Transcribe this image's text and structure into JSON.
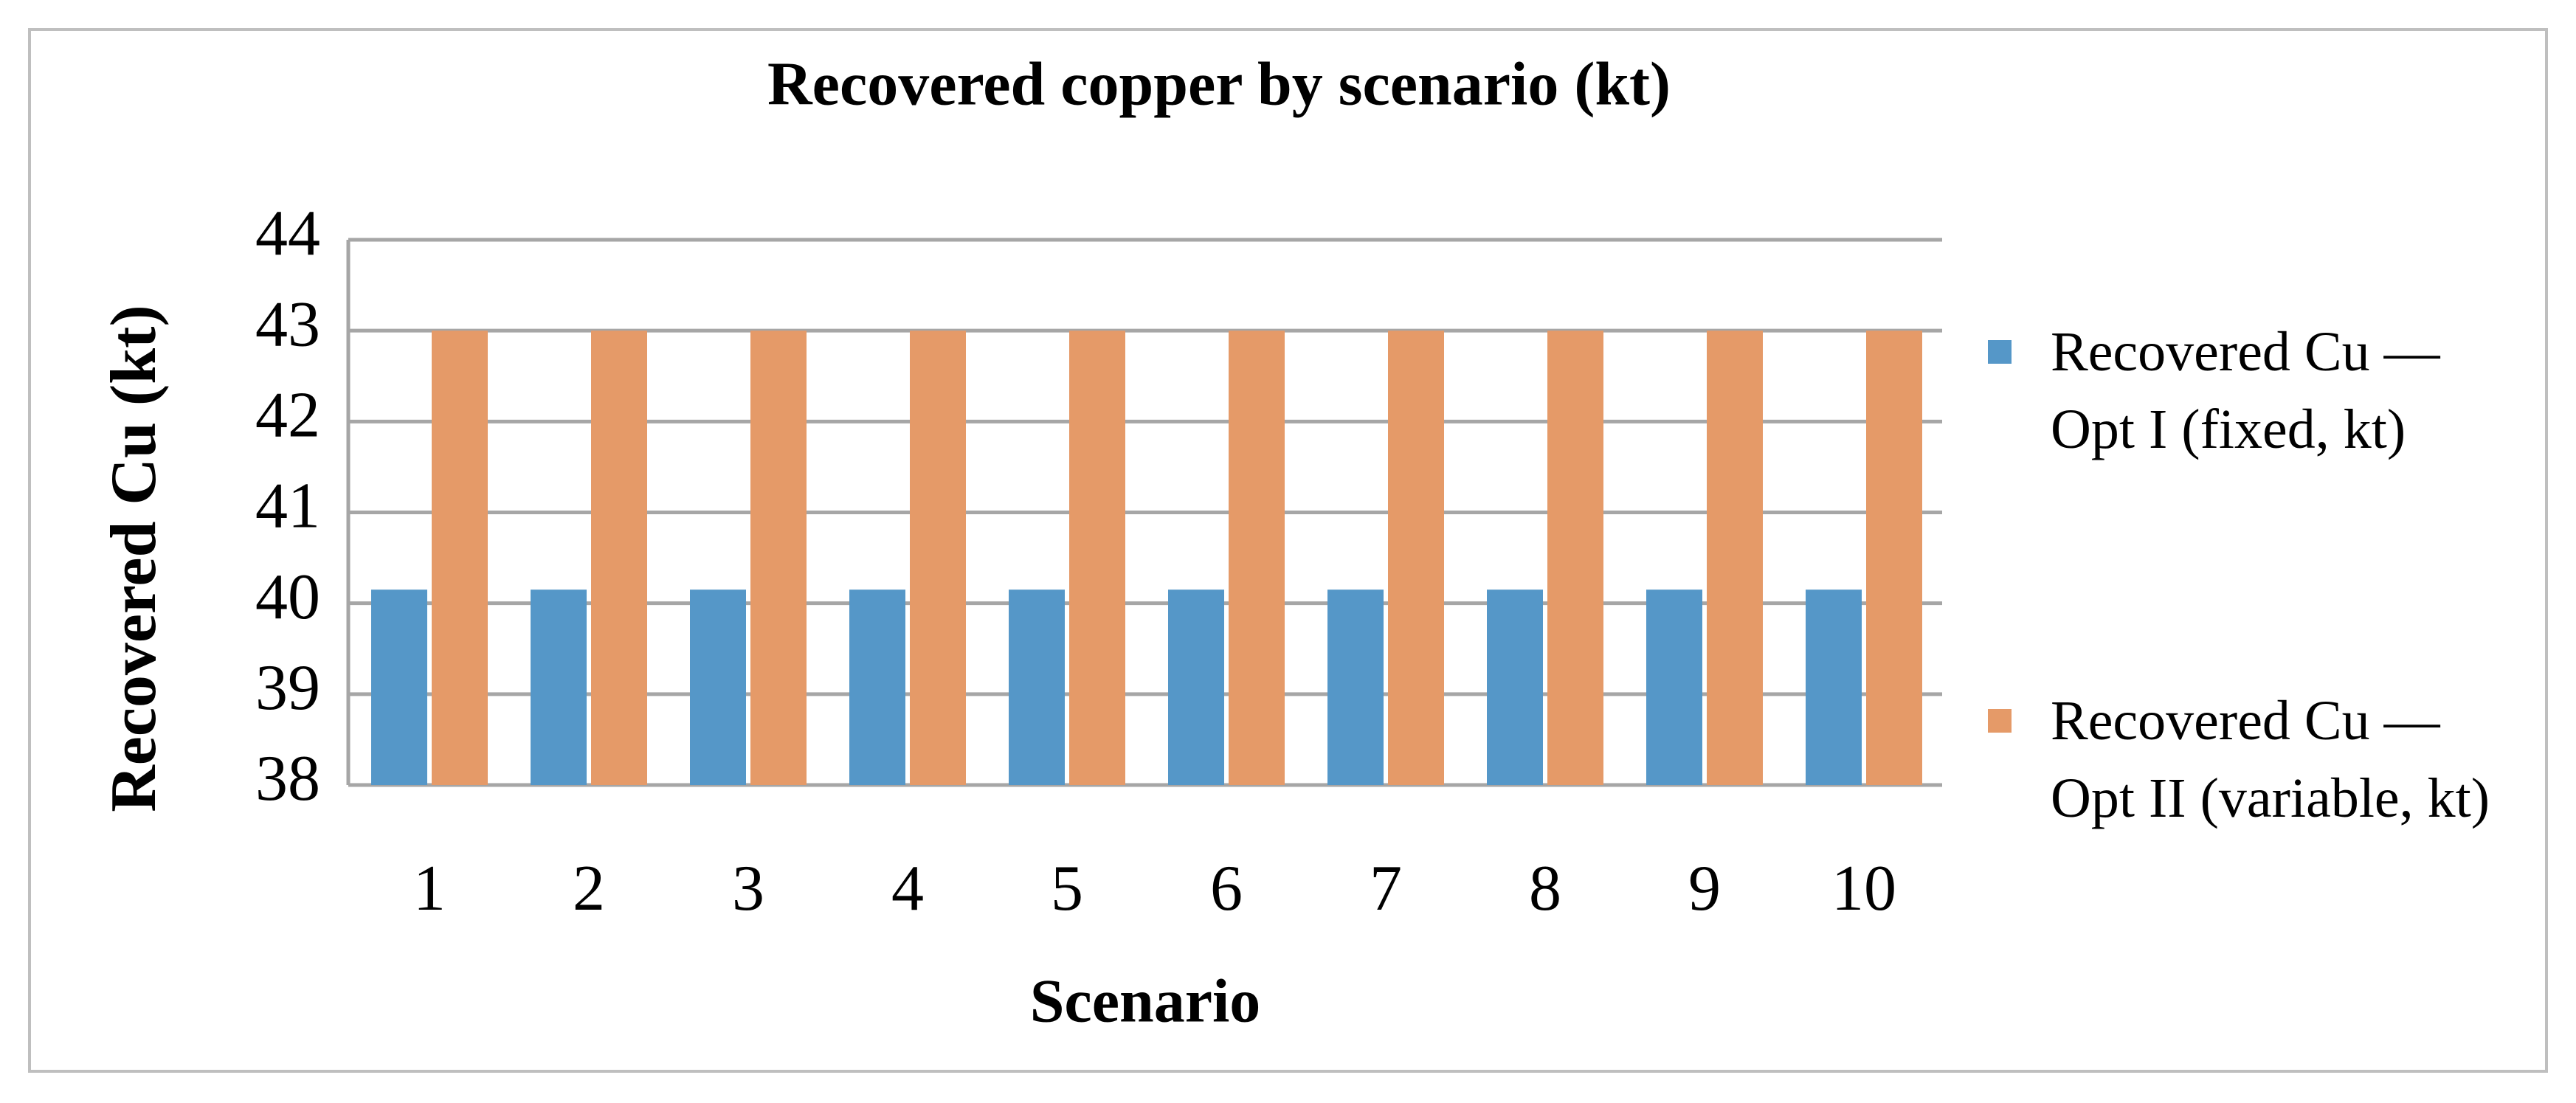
{
  "chart_data": {
    "type": "bar",
    "title": "Recovered copper by scenario (kt)",
    "x_label": "Scenario",
    "y_label": "Recovered Cu (kt)",
    "categories": [
      "1",
      "2",
      "3",
      "4",
      "5",
      "6",
      "7",
      "8",
      "9",
      "10"
    ],
    "series": [
      {
        "name": "Recovered Cu — Opt I (fixed, kt)",
        "color": "#5597c8",
        "values": [
          40.15,
          40.15,
          40.15,
          40.15,
          40.15,
          40.15,
          40.15,
          40.15,
          40.15,
          40.15
        ]
      },
      {
        "name": "Recovered Cu — Opt II (variable, kt)",
        "color": "#e59a68",
        "values": [
          43,
          43,
          43,
          43,
          43,
          43,
          43,
          43,
          43,
          43
        ]
      }
    ],
    "ylim": [
      38,
      44
    ],
    "yticks": [
      38,
      39,
      40,
      41,
      42,
      43,
      44
    ],
    "grid": true,
    "legend": "right"
  }
}
